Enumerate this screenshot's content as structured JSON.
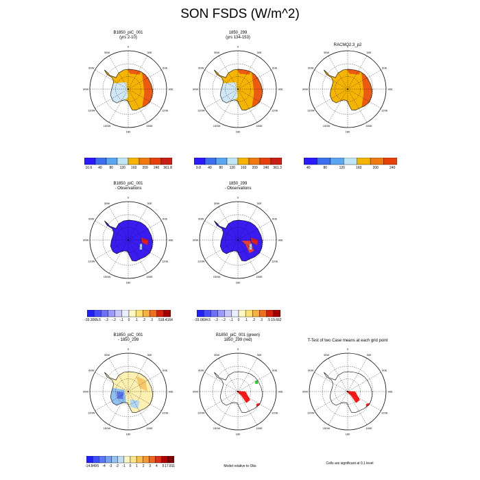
{
  "title": "SON FSDS (W/m^2)",
  "lon_labels": [
    "0",
    "30E",
    "60E",
    "90E",
    "120E",
    "150E",
    "180",
    "150W",
    "120W",
    "90W",
    "60W",
    "30W"
  ],
  "panels": [
    {
      "id": "p1",
      "title1": "B1850_piC_001",
      "title2": "(yrs 2-10)",
      "style": "abs"
    },
    {
      "id": "p2",
      "title1": "1850_299",
      "title2": "(yrs 134-153)",
      "style": "abs"
    },
    {
      "id": "p3",
      "title1": "RACMO2.3_p2",
      "title2": "",
      "style": "abs"
    },
    {
      "id": "p4",
      "title1": "B1850_piC_001",
      "title2": "- Observations",
      "style": "bias1"
    },
    {
      "id": "p5",
      "title1": "1850_299",
      "title2": "- Observations",
      "style": "bias2"
    },
    {
      "id": "p6",
      "title1": "B1850_piC_001",
      "title2": "- 1850_299",
      "style": "diff"
    },
    {
      "id": "p7",
      "title1": "B1850_piC_001 (green)",
      "title2": "1850_299 (red)",
      "style": "sig"
    },
    {
      "id": "p8",
      "title1": "T-Test of two Case means at each grid point",
      "title2": "",
      "style": "ttest"
    }
  ],
  "colorbars": [
    {
      "id": "cb1",
      "labels": [
        "10.6",
        "40",
        "80",
        "120",
        "160",
        "200",
        "240",
        "361.8"
      ],
      "colors": [
        "#2a1aff",
        "#3a6df0",
        "#5aa6f0",
        "#bfe6f5",
        "#f5b400",
        "#f07a10",
        "#e8400a",
        "#c81e14"
      ]
    },
    {
      "id": "cb2",
      "labels": [
        "9.8",
        "40",
        "80",
        "120",
        "160",
        "200",
        "240",
        "361.3"
      ],
      "colors": [
        "#2a1aff",
        "#3a6df0",
        "#5aa6f0",
        "#bfe6f5",
        "#f5b400",
        "#f07a10",
        "#e8400a",
        "#c81e14"
      ]
    },
    {
      "id": "cb3",
      "labels": [
        "40",
        "80",
        "120",
        "160",
        "200",
        "240"
      ],
      "colors": [
        "#2a1aff",
        "#3a6df0",
        "#5aa6f0",
        "#bfe6f5",
        "#f5b400",
        "#f07a10",
        "#e8400a"
      ]
    },
    {
      "id": "cb4",
      "labels": [
        "-33.3065",
        "-.5",
        "-.3",
        "-.2",
        "-.1",
        "0",
        ".1",
        ".2",
        ".3",
        ".5",
        "18.4164"
      ],
      "colors": [
        "#2020ff",
        "#4a4aff",
        "#6e6eff",
        "#9a9aff",
        "#c8c8ff",
        "#e8f0ff",
        "#fff8c0",
        "#fde070",
        "#f8b040",
        "#f07020",
        "#d82010",
        "#a00000"
      ]
    },
    {
      "id": "cb5",
      "labels": [
        "-33.0694",
        "-.5",
        "-.3",
        "-.2",
        "-.1",
        "0",
        ".1",
        ".2",
        ".3",
        ".5",
        "19.662"
      ],
      "colors": [
        "#2020ff",
        "#4a4aff",
        "#6e6eff",
        "#9a9aff",
        "#c8c8ff",
        "#e8f0ff",
        "#fff8c0",
        "#fde070",
        "#f8b040",
        "#f07020",
        "#d82010",
        "#a00000"
      ]
    },
    {
      "id": "cb6",
      "labels": [
        "-14.849",
        "-5",
        "-4",
        "-3",
        "-2",
        "-1",
        "0",
        "1",
        "2",
        "3",
        "4",
        "5",
        "17.811"
      ],
      "colors": [
        "#2020ff",
        "#3c50ff",
        "#5a78ff",
        "#78a0f0",
        "#96c0f0",
        "#c0dcf5",
        "#f5f5c0",
        "#fde68a",
        "#f8c050",
        "#f49830",
        "#ec6820",
        "#dc3010",
        "#b00000",
        "#800000"
      ]
    }
  ],
  "footnotes": {
    "model_relative": "Model relative to Obs",
    "significant": "Cells are significant at 0.1 level"
  },
  "colors": {
    "ice_light": "#cfe8f3",
    "orange": "#f5b400",
    "red_orange": "#ec5a14",
    "deep_blue": "#3a1bf0",
    "sig_red": "#ff1a1a",
    "sig_green": "#22cc22"
  }
}
